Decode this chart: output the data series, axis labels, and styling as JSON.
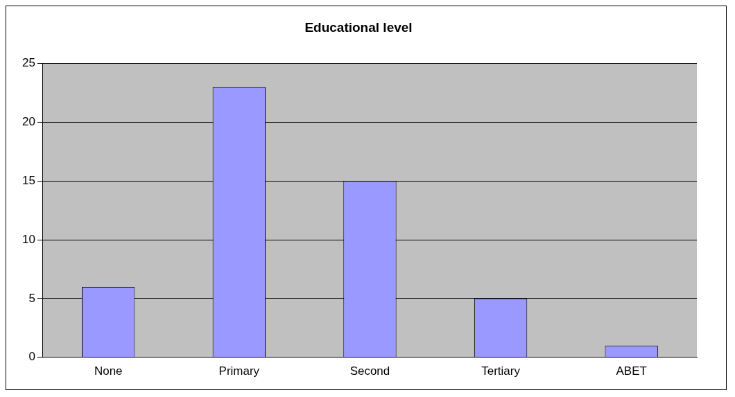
{
  "chart_data": {
    "type": "bar",
    "title": "Educational level",
    "categories": [
      "None",
      "Primary",
      "Second",
      "Tertiary",
      "ABET"
    ],
    "values": [
      6,
      23,
      15,
      5,
      1
    ],
    "color": "#9999ff",
    "ylim": [
      0,
      25
    ],
    "yticks": [
      0,
      5,
      10,
      15,
      20,
      25
    ],
    "grid": "y"
  }
}
